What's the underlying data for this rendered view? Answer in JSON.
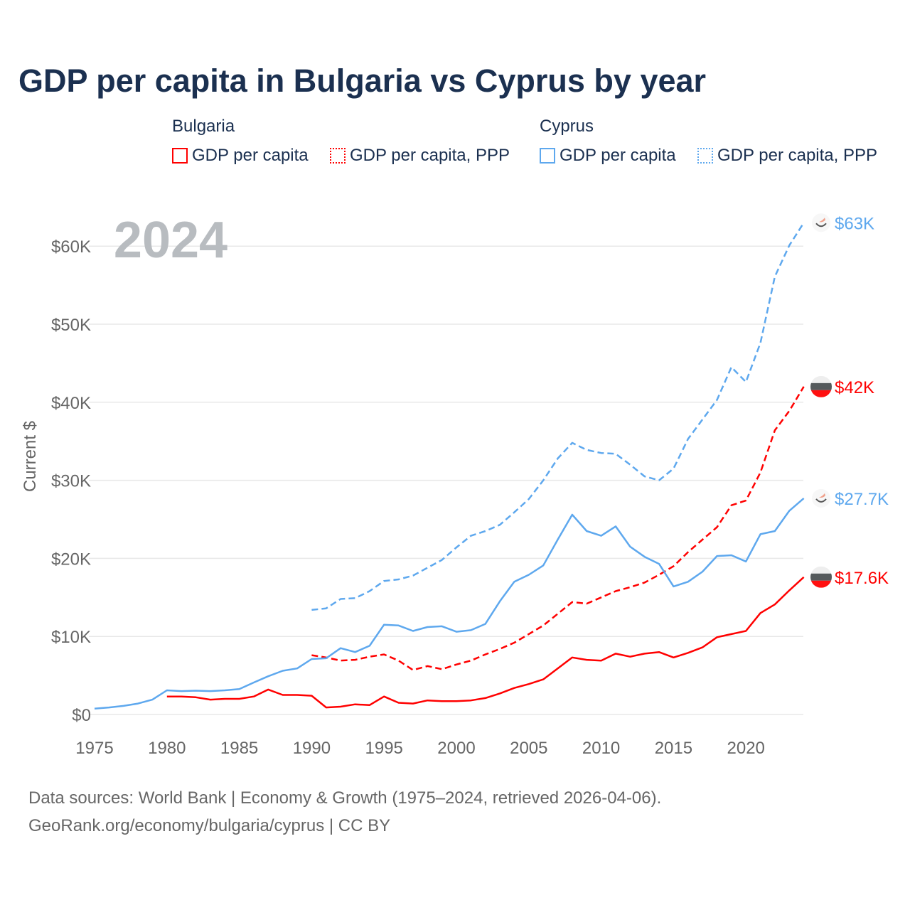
{
  "title": "GDP per capita in Bulgaria vs Cyprus by year",
  "legend": {
    "groups": [
      {
        "name": "Bulgaria",
        "color": "#ff0000",
        "items": [
          "GDP per capita",
          "GDP per capita, PPP"
        ]
      },
      {
        "name": "Cyprus",
        "color": "#5ea8ee",
        "items": [
          "GDP per capita",
          "GDP per capita, PPP"
        ]
      }
    ]
  },
  "year_label": "2024",
  "footer": {
    "line1": "Data sources: World Bank | Economy & Growth (1975–2024, retrieved 2026-04-06).",
    "line2": "GeoRank.org/economy/bulgaria/cyprus | CC BY"
  },
  "chart_data": {
    "type": "line",
    "title": "GDP per capita in Bulgaria vs Cyprus by year",
    "xlabel": "",
    "ylabel": "Current $",
    "xlim": [
      1975,
      2024
    ],
    "ylim": [
      0,
      65000
    ],
    "grid": true,
    "legend_placement": "top",
    "x_ticks": [
      1975,
      1980,
      1985,
      1990,
      1995,
      2000,
      2005,
      2010,
      2015,
      2020
    ],
    "x_tick_labels": [
      "1975",
      "1980",
      "1985",
      "1990",
      "1995",
      "2000",
      "2005",
      "2010",
      "2015",
      "2020"
    ],
    "y_ticks": [
      0,
      10000,
      20000,
      30000,
      40000,
      50000,
      60000
    ],
    "y_tick_labels": [
      "$0",
      "$10K",
      "$20K",
      "$30K",
      "$40K",
      "$50K",
      "$60K"
    ],
    "series": [
      {
        "name": "Bulgaria GDP per capita",
        "country": "Bulgaria",
        "color": "#ff0000",
        "dashed": false,
        "end_label": "$17.6K",
        "start": 1980,
        "values": [
          2300,
          2300,
          2200,
          1900,
          2000,
          2000,
          2300,
          3200,
          2500,
          2500,
          2400,
          900,
          1000,
          1300,
          1200,
          2300,
          1500,
          1400,
          1800,
          1700,
          1700,
          1800,
          2100,
          2700,
          3400,
          3900,
          4500,
          5900,
          7300,
          7000,
          6900,
          7800,
          7400,
          7800,
          8000,
          7300,
          7900,
          8600,
          9900,
          10300,
          10700,
          13000,
          14100,
          15900,
          17600
        ]
      },
      {
        "name": "Bulgaria GDP per capita, PPP",
        "country": "Bulgaria",
        "color": "#ff0000",
        "dashed": true,
        "end_label": "$42K",
        "start": 1990,
        "values": [
          7600,
          7300,
          6900,
          7000,
          7400,
          7700,
          6900,
          5700,
          6200,
          5800,
          6400,
          6900,
          7700,
          8400,
          9200,
          10300,
          11400,
          12900,
          14400,
          14200,
          15000,
          15800,
          16300,
          16900,
          17900,
          19000,
          20800,
          22400,
          24000,
          26800,
          27400,
          31000,
          36400,
          38900,
          42000
        ]
      },
      {
        "name": "Cyprus GDP per capita",
        "country": "Cyprus",
        "color": "#5ea8ee",
        "dashed": false,
        "end_label": "$27.7K",
        "start": 1975,
        "values": [
          750,
          900,
          1100,
          1400,
          1900,
          3100,
          3000,
          3050,
          3000,
          3100,
          3250,
          4100,
          4900,
          5600,
          5900,
          7100,
          7200,
          8500,
          8000,
          8800,
          11500,
          11400,
          10700,
          11200,
          11300,
          10600,
          10800,
          11600,
          14500,
          17000,
          17900,
          19100,
          22400,
          25600,
          23500,
          22900,
          24100,
          21500,
          20200,
          19300,
          16400,
          17000,
          18300,
          20300,
          20400,
          19600,
          23100,
          23500,
          26100,
          27700
        ]
      },
      {
        "name": "Cyprus GDP per capita, PPP",
        "country": "Cyprus",
        "color": "#5ea8ee",
        "dashed": true,
        "end_label": "$63K",
        "start": 1990,
        "values": [
          13400,
          13600,
          14800,
          14900,
          15800,
          17100,
          17300,
          17800,
          18800,
          19800,
          21400,
          22900,
          23500,
          24300,
          25900,
          27600,
          30000,
          32800,
          34800,
          33900,
          33500,
          33400,
          32000,
          30500,
          30000,
          31500,
          35300,
          37800,
          40300,
          44500,
          42600,
          47600,
          56100,
          60100,
          63000
        ]
      }
    ]
  }
}
